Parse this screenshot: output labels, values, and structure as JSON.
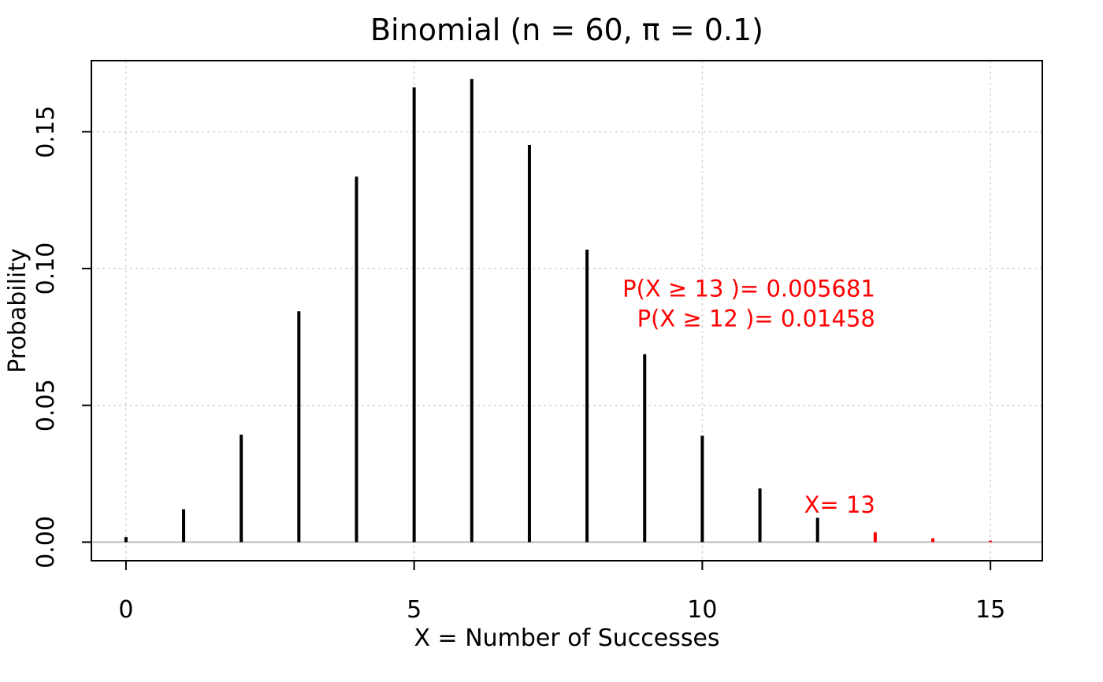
{
  "chart_data": {
    "type": "bar",
    "title": "Binomial (n = 60, π = 0.1)",
    "xlabel": "X = Number of Successes",
    "ylabel": "Probability",
    "xlim": [
      -0.6,
      15.9
    ],
    "ylim": [
      -0.0068,
      0.176
    ],
    "xticks": [
      0,
      5,
      10,
      15
    ],
    "yticks": [
      0.0,
      0.05,
      0.1,
      0.15
    ],
    "ytick_labels": [
      "0.00",
      "0.05",
      "0.10",
      "0.15"
    ],
    "grid": true,
    "series": [
      {
        "x": [
          0,
          1,
          2,
          3,
          4,
          5,
          6,
          7,
          8,
          9,
          10,
          11,
          12
        ],
        "values": [
          0.0018,
          0.012,
          0.0393,
          0.0844,
          0.1336,
          0.1662,
          0.1693,
          0.1452,
          0.1069,
          0.0687,
          0.0389,
          0.0196,
          0.0089
        ],
        "color": "#000000"
      },
      {
        "x": [
          13,
          14,
          15
        ],
        "values": [
          0.0036,
          0.0014,
          0.0005
        ],
        "color": "#ff0000"
      }
    ],
    "annotations": [
      {
        "text": "P(X ≥ 13 )= 0.005681",
        "x": 13.0,
        "y": 0.0898,
        "color": "#ff0000"
      },
      {
        "text": "P(X ≥ 12 )= 0.01458",
        "x": 13.0,
        "y": 0.0788,
        "color": "#ff0000"
      },
      {
        "text": "X= 13",
        "x": 13.0,
        "y": 0.0108,
        "color": "#ff0000"
      }
    ]
  }
}
